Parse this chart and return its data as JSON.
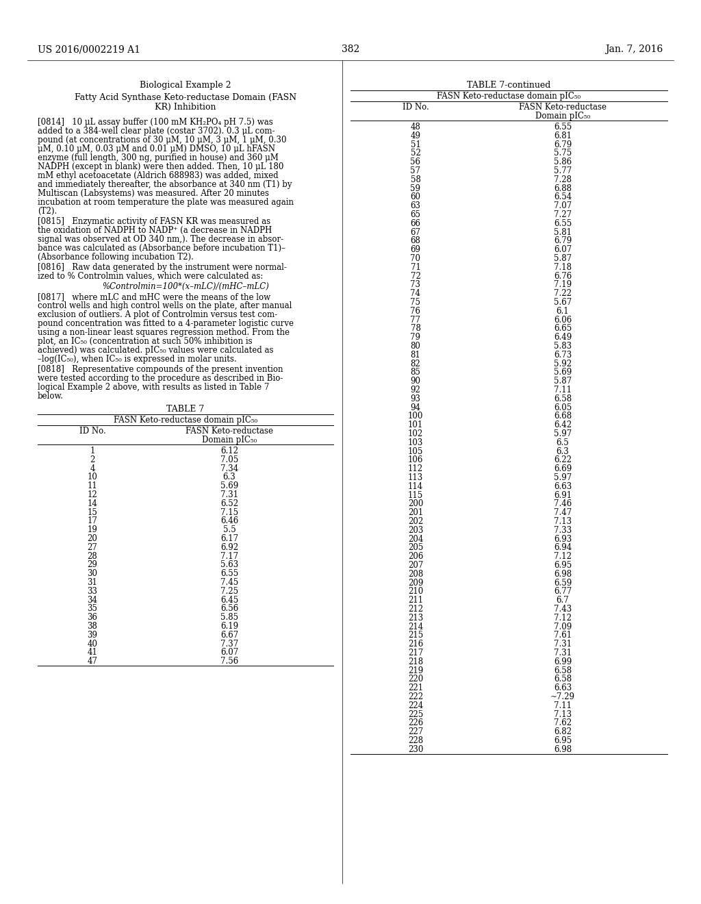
{
  "page_number": "382",
  "header_left": "US 2016/0002219 A1",
  "header_right": "Jan. 7, 2016",
  "left_title": "Biological Example 2",
  "left_subtitle1": "Fatty Acid Synthase Keto-reductase Domain (FASN",
  "left_subtitle2": "KR) Inhibition",
  "para0": "[0814]   10 μL assay buffer (100 mM KH₂PO₄ pH 7.5) was added to a 384-well clear plate (costar 3702). 0.3 μL com-pound (at concentrations of 30 μM, 10 μM, 3 μM, 1 μM, 0.30 μM, 0.10 μM, 0.03 μM and 0.01 μM) DMSO, 10 μL hFASN enzyme (full length, 300 ng, purified in house) and 360 μM NADPH (except in blank) were then added. Then, 10 μL 180 mM ethyl acetoacetate (Aldrich 688983) was added, mixed and immediately thereafter, the absorbance at 340 nm (T1) by Multiscan (Labsystems) was measured. After 20 minutes incubation at room temperature the plate was measured again (T2).",
  "para0_lines": [
    "[0814]   10 μL assay buffer (100 mM KH₂PO₄ pH 7.5) was",
    "added to a 384-well clear plate (costar 3702). 0.3 μL com-",
    "pound (at concentrations of 30 μM, 10 μM, 3 μM, 1 μM, 0.30",
    "μM, 0.10 μM, 0.03 μM and 0.01 μM) DMSO, 10 μL hFASN",
    "enzyme (full length, 300 ng, purified in house) and 360 μM",
    "NADPH (except in blank) were then added. Then, 10 μL 180",
    "mM ethyl acetoacetate (Aldrich 688983) was added, mixed",
    "and immediately thereafter, the absorbance at 340 nm (T1) by",
    "Multiscan (Labsystems) was measured. After 20 minutes",
    "incubation at room temperature the plate was measured again",
    "(T2)."
  ],
  "para1_lines": [
    "[0815]   Enzymatic activity of FASN KR was measured as",
    "the oxidation of NADPH to NADP⁺ (a decrease in NADPH",
    "signal was observed at OD 340 nm,). The decrease in absor-",
    "bance was calculated as (Absorbance before incubation T1)–",
    "(Absorbance following incubation T2)."
  ],
  "para2_lines": [
    "[0816]   Raw data generated by the instrument were normal-",
    "ized to % Controlmin values, which were calculated as:"
  ],
  "formula": "%Controlmin=100*(x–mLC)/(mHC–mLC)",
  "para3_lines": [
    "[0817]   where mLC and mHC were the means of the low",
    "control wells and high control wells on the plate, after manual",
    "exclusion of outliers. A plot of Controlmin versus test com-",
    "pound concentration was fitted to a 4-parameter logistic curve",
    "using a non-linear least squares regression method. From the",
    "plot, an IC₅₀ (concentration at such 50% inhibition is",
    "achieved) was calculated. pIC₅₀ values were calculated as",
    "–log(IC₅₀), when IC₅₀ is expressed in molar units."
  ],
  "para4_lines": [
    "[0818]   Representative compounds of the present invention",
    "were tested according to the procedure as described in Bio-",
    "logical Example 2 above, with results as listed in Table 7",
    "below."
  ],
  "table7_title": "TABLE 7",
  "table7_subtitle": "FASN Keto-reductase domain pIC₅₀",
  "table7_col1": "ID No.",
  "table7_col2a": "FASN Keto-reductase",
  "table7_col2b": "Domain pIC₅₀",
  "table7_data": [
    [
      "1",
      "6.12"
    ],
    [
      "2",
      "7.05"
    ],
    [
      "4",
      "7.34"
    ],
    [
      "10",
      "6.3"
    ],
    [
      "11",
      "5.69"
    ],
    [
      "12",
      "7.31"
    ],
    [
      "14",
      "6.52"
    ],
    [
      "15",
      "7.15"
    ],
    [
      "17",
      "6.46"
    ],
    [
      "19",
      "5.5"
    ],
    [
      "20",
      "6.17"
    ],
    [
      "27",
      "6.92"
    ],
    [
      "28",
      "7.17"
    ],
    [
      "29",
      "5.63"
    ],
    [
      "30",
      "6.55"
    ],
    [
      "31",
      "7.45"
    ],
    [
      "33",
      "7.25"
    ],
    [
      "34",
      "6.45"
    ],
    [
      "35",
      "6.56"
    ],
    [
      "36",
      "5.85"
    ],
    [
      "38",
      "6.19"
    ],
    [
      "39",
      "6.67"
    ],
    [
      "40",
      "7.37"
    ],
    [
      "41",
      "6.07"
    ],
    [
      "47",
      "7.56"
    ]
  ],
  "table7cont_title": "TABLE 7-continued",
  "table7cont_subtitle": "FASN Keto-reductase domain pIC₅₀",
  "table7cont_col1": "ID No.",
  "table7cont_col2a": "FASN Keto-reductase",
  "table7cont_col2b": "Domain pIC₅₀",
  "table7cont_data": [
    [
      "48",
      "6.55"
    ],
    [
      "49",
      "6.81"
    ],
    [
      "51",
      "6.79"
    ],
    [
      "52",
      "5.75"
    ],
    [
      "56",
      "5.86"
    ],
    [
      "57",
      "5.77"
    ],
    [
      "58",
      "7.28"
    ],
    [
      "59",
      "6.88"
    ],
    [
      "60",
      "6.54"
    ],
    [
      "63",
      "7.07"
    ],
    [
      "65",
      "7.27"
    ],
    [
      "66",
      "6.55"
    ],
    [
      "67",
      "5.81"
    ],
    [
      "68",
      "6.79"
    ],
    [
      "69",
      "6.07"
    ],
    [
      "70",
      "5.87"
    ],
    [
      "71",
      "7.18"
    ],
    [
      "72",
      "6.76"
    ],
    [
      "73",
      "7.19"
    ],
    [
      "74",
      "7.22"
    ],
    [
      "75",
      "5.67"
    ],
    [
      "76",
      "6.1"
    ],
    [
      "77",
      "6.06"
    ],
    [
      "78",
      "6.65"
    ],
    [
      "79",
      "6.49"
    ],
    [
      "80",
      "5.83"
    ],
    [
      "81",
      "6.73"
    ],
    [
      "82",
      "5.92"
    ],
    [
      "85",
      "5.69"
    ],
    [
      "90",
      "5.87"
    ],
    [
      "92",
      "7.11"
    ],
    [
      "93",
      "6.58"
    ],
    [
      "94",
      "6.05"
    ],
    [
      "100",
      "6.68"
    ],
    [
      "101",
      "6.42"
    ],
    [
      "102",
      "5.97"
    ],
    [
      "103",
      "6.5"
    ],
    [
      "105",
      "6.3"
    ],
    [
      "106",
      "6.22"
    ],
    [
      "112",
      "6.69"
    ],
    [
      "113",
      "5.97"
    ],
    [
      "114",
      "6.63"
    ],
    [
      "115",
      "6.91"
    ],
    [
      "200",
      "7.46"
    ],
    [
      "201",
      "7.47"
    ],
    [
      "202",
      "7.13"
    ],
    [
      "203",
      "7.33"
    ],
    [
      "204",
      "6.93"
    ],
    [
      "205",
      "6.94"
    ],
    [
      "206",
      "7.12"
    ],
    [
      "207",
      "6.95"
    ],
    [
      "208",
      "6.98"
    ],
    [
      "209",
      "6.59"
    ],
    [
      "210",
      "6.77"
    ],
    [
      "211",
      "6.7"
    ],
    [
      "212",
      "7.43"
    ],
    [
      "213",
      "7.12"
    ],
    [
      "214",
      "7.09"
    ],
    [
      "215",
      "7.61"
    ],
    [
      "216",
      "7.31"
    ],
    [
      "217",
      "7.31"
    ],
    [
      "218",
      "6.99"
    ],
    [
      "219",
      "6.58"
    ],
    [
      "220",
      "6.58"
    ],
    [
      "221",
      "6.63"
    ],
    [
      "222",
      "~7.29"
    ],
    [
      "224",
      "7.11"
    ],
    [
      "225",
      "7.13"
    ],
    [
      "226",
      "7.62"
    ],
    [
      "227",
      "6.82"
    ],
    [
      "228",
      "6.95"
    ],
    [
      "230",
      "6.98"
    ]
  ],
  "bg_color": "#ffffff",
  "text_color": "#000000"
}
